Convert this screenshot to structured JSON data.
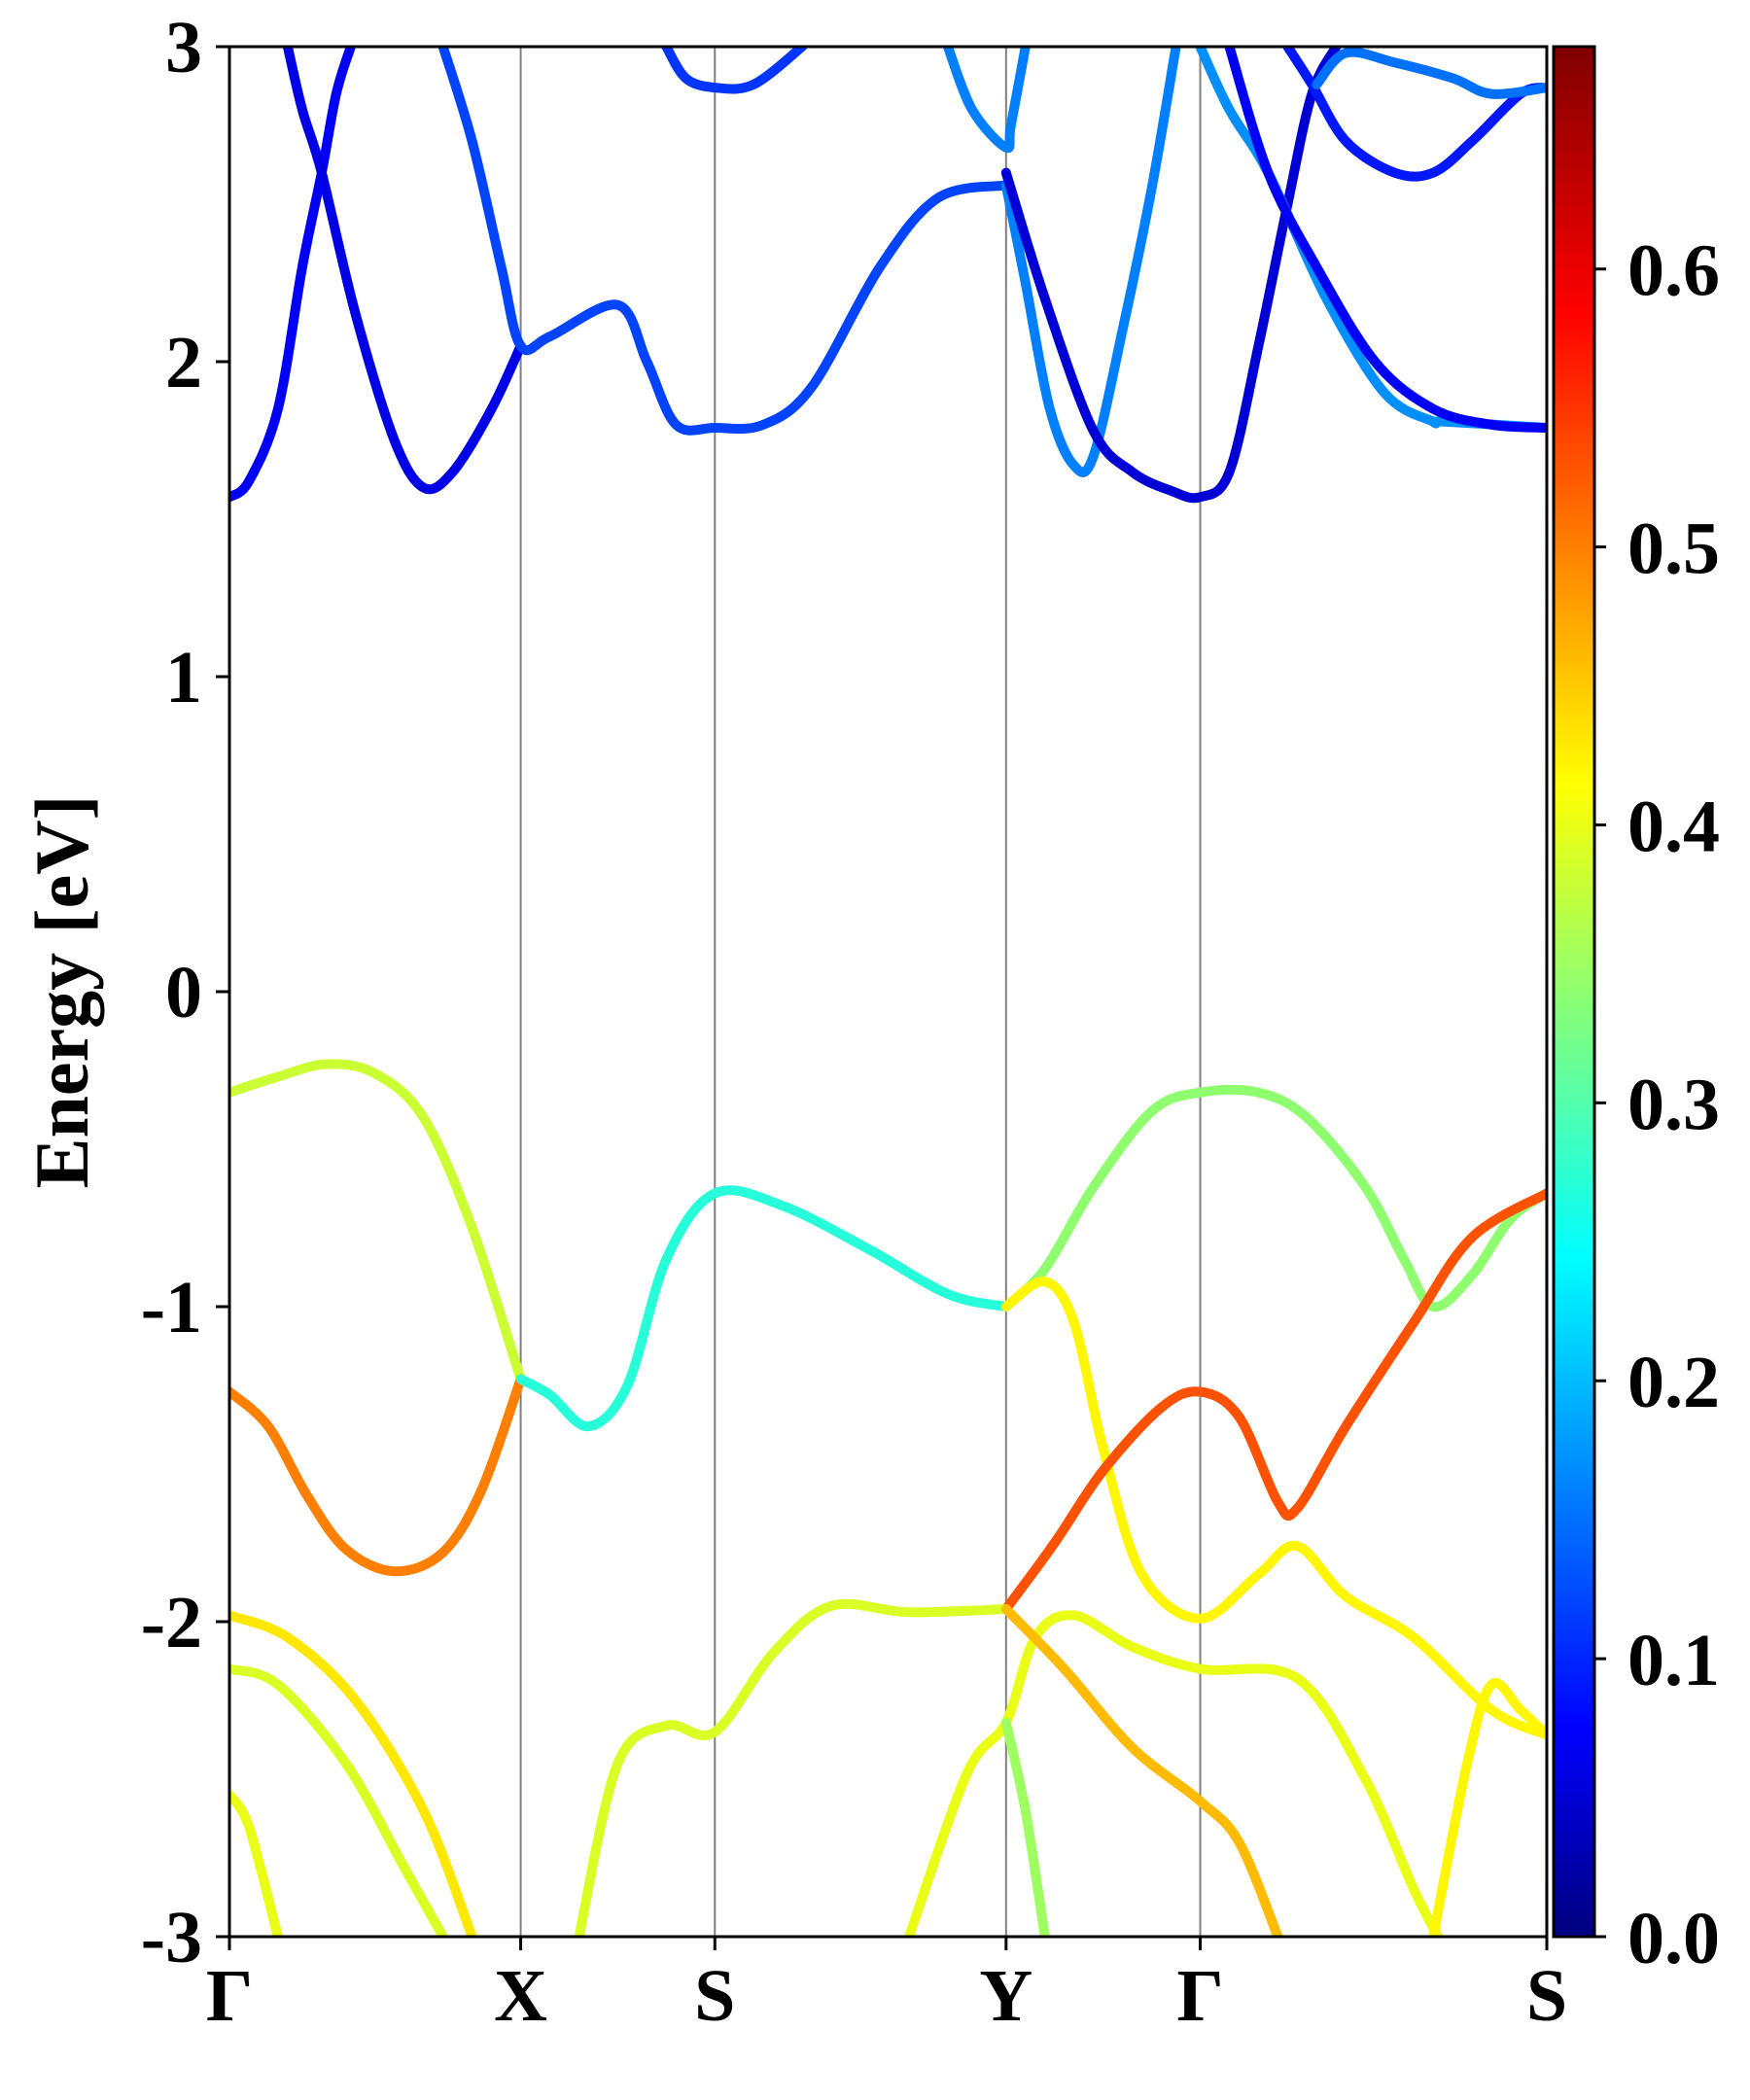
{
  "chart_data": {
    "type": "line",
    "title": "",
    "ylabel": "Energy [eV]",
    "xlabel": "",
    "ylim": [
      -3,
      3
    ],
    "yticks": [
      "-3",
      "-2",
      "-1",
      "0",
      "1",
      "2",
      "3"
    ],
    "kpath": {
      "labels": [
        "Γ",
        "X",
        "S",
        "Y",
        "Γ",
        "S"
      ],
      "positions": [
        0,
        0.3,
        0.5,
        0.8,
        1.0,
        1.357
      ]
    },
    "colorbar": {
      "colormap": "jet",
      "range": [
        0.0,
        0.68
      ],
      "ticks": [
        "0.0",
        "0.1",
        "0.2",
        "0.3",
        "0.4",
        "0.5",
        "0.6"
      ]
    },
    "grid": false,
    "series": [
      {
        "c": 0.07,
        "points": [
          [
            0,
            1.57
          ],
          [
            0.02,
            1.62
          ],
          [
            0.05,
            1.85
          ],
          [
            0.075,
            2.3
          ],
          [
            0.095,
            2.6
          ],
          [
            0.11,
            2.85
          ],
          [
            0.125,
            3.0
          ]
        ]
      },
      {
        "c": 0.06,
        "points": [
          [
            0.06,
            3.0
          ],
          [
            0.075,
            2.8
          ],
          [
            0.095,
            2.6
          ],
          [
            0.13,
            2.15
          ],
          [
            0.17,
            1.75
          ],
          [
            0.2,
            1.6
          ],
          [
            0.23,
            1.65
          ],
          [
            0.27,
            1.85
          ],
          [
            0.3,
            2.05
          ]
        ]
      },
      {
        "c": 0.12,
        "points": [
          [
            0.22,
            3.0
          ],
          [
            0.25,
            2.7
          ],
          [
            0.28,
            2.3
          ],
          [
            0.3,
            2.05
          ],
          [
            0.33,
            2.08
          ],
          [
            0.4,
            2.18
          ],
          [
            0.43,
            2.0
          ],
          [
            0.46,
            1.8
          ],
          [
            0.5,
            1.79
          ],
          [
            0.55,
            1.8
          ],
          [
            0.6,
            1.92
          ],
          [
            0.67,
            2.3
          ],
          [
            0.73,
            2.52
          ],
          [
            0.8,
            2.56
          ]
        ]
      },
      {
        "c": 0.11,
        "points": [
          [
            0.45,
            3.0
          ],
          [
            0.47,
            2.9
          ],
          [
            0.5,
            2.87
          ],
          [
            0.54,
            2.88
          ],
          [
            0.59,
            3.0
          ]
        ]
      },
      {
        "c": 0.16,
        "points": [
          [
            0.74,
            3.0
          ],
          [
            0.765,
            2.8
          ],
          [
            0.8,
            2.68
          ],
          [
            0.805,
            2.75
          ],
          [
            0.82,
            3.0
          ]
        ]
      },
      {
        "c": 0.16,
        "points": [
          [
            0.8,
            2.56
          ],
          [
            0.82,
            2.25
          ],
          [
            0.845,
            1.85
          ],
          [
            0.87,
            1.67
          ],
          [
            0.89,
            1.7
          ],
          [
            0.92,
            2.1
          ],
          [
            0.95,
            2.55
          ],
          [
            0.975,
            3.0
          ]
        ]
      },
      {
        "c": 0.05,
        "points": [
          [
            0.8,
            2.6
          ],
          [
            0.84,
            2.2
          ],
          [
            0.89,
            1.78
          ],
          [
            0.93,
            1.65
          ],
          [
            0.97,
            1.59
          ],
          [
            1.0,
            1.57
          ],
          [
            1.03,
            1.65
          ],
          [
            1.06,
            2.05
          ],
          [
            1.09,
            2.5
          ],
          [
            1.115,
            2.85
          ],
          [
            1.14,
            3.0
          ]
        ]
      },
      {
        "c": 0.17,
        "points": [
          [
            1.0,
            3.0
          ],
          [
            1.03,
            2.8
          ],
          [
            1.07,
            2.6
          ],
          [
            1.13,
            2.2
          ],
          [
            1.19,
            1.9
          ],
          [
            1.24,
            1.81
          ],
          [
            1.25,
            1.81
          ],
          [
            1.357,
            1.79
          ]
        ]
      },
      {
        "c": 0.07,
        "points": [
          [
            1.03,
            3.0
          ],
          [
            1.07,
            2.6
          ],
          [
            1.12,
            2.3
          ],
          [
            1.18,
            2.0
          ],
          [
            1.24,
            1.85
          ],
          [
            1.3,
            1.8
          ],
          [
            1.357,
            1.79
          ]
        ]
      },
      {
        "c": 0.09,
        "points": [
          [
            1.09,
            3.0
          ],
          [
            1.115,
            2.88
          ],
          [
            1.15,
            2.7
          ],
          [
            1.2,
            2.6
          ],
          [
            1.24,
            2.6
          ],
          [
            1.28,
            2.7
          ],
          [
            1.33,
            2.85
          ],
          [
            1.357,
            2.87
          ]
        ]
      },
      {
        "c": 0.15,
        "points": [
          [
            1.12,
            2.88
          ],
          [
            1.15,
            2.98
          ],
          [
            1.2,
            2.95
          ],
          [
            1.26,
            2.9
          ],
          [
            1.3,
            2.85
          ],
          [
            1.357,
            2.87
          ]
        ]
      },
      {
        "c": 0.38,
        "points": [
          [
            0,
            -0.32
          ],
          [
            0.05,
            -0.27
          ],
          [
            0.1,
            -0.23
          ],
          [
            0.15,
            -0.26
          ],
          [
            0.2,
            -0.4
          ],
          [
            0.25,
            -0.75
          ],
          [
            0.3,
            -1.23
          ]
        ]
      },
      {
        "c": 0.5,
        "points": [
          [
            0,
            -1.27
          ],
          [
            0.04,
            -1.38
          ],
          [
            0.08,
            -1.6
          ],
          [
            0.12,
            -1.77
          ],
          [
            0.17,
            -1.84
          ],
          [
            0.22,
            -1.78
          ],
          [
            0.26,
            -1.58
          ],
          [
            0.3,
            -1.23
          ]
        ]
      },
      {
        "c": 0.27,
        "points": [
          [
            0.3,
            -1.23
          ],
          [
            0.33,
            -1.28
          ],
          [
            0.37,
            -1.38
          ],
          [
            0.41,
            -1.25
          ],
          [
            0.45,
            -0.85
          ],
          [
            0.5,
            -0.64
          ],
          [
            0.57,
            -0.68
          ],
          [
            0.66,
            -0.82
          ],
          [
            0.74,
            -0.96
          ],
          [
            0.8,
            -1.0
          ]
        ]
      },
      {
        "c": 0.34,
        "points": [
          [
            0.8,
            -1.0
          ],
          [
            0.84,
            -0.88
          ],
          [
            0.89,
            -0.62
          ],
          [
            0.95,
            -0.38
          ],
          [
            1.0,
            -0.32
          ],
          [
            1.06,
            -0.32
          ],
          [
            1.11,
            -0.4
          ],
          [
            1.17,
            -0.62
          ],
          [
            1.21,
            -0.85
          ],
          [
            1.24,
            -1.0
          ],
          [
            1.28,
            -0.9
          ],
          [
            1.32,
            -0.72
          ],
          [
            1.357,
            -0.64
          ]
        ]
      },
      {
        "c": 0.42,
        "points": [
          [
            0.8,
            -1.0
          ],
          [
            0.84,
            -0.92
          ],
          [
            0.87,
            -1.05
          ],
          [
            0.9,
            -1.45
          ],
          [
            0.94,
            -1.85
          ],
          [
            1.0,
            -1.99
          ],
          [
            1.06,
            -1.85
          ],
          [
            1.1,
            -1.76
          ],
          [
            1.15,
            -1.92
          ],
          [
            1.22,
            -2.05
          ],
          [
            1.3,
            -2.28
          ],
          [
            1.357,
            -2.36
          ]
        ]
      },
      {
        "c": 0.53,
        "points": [
          [
            0.8,
            -1.96
          ],
          [
            0.85,
            -1.75
          ],
          [
            0.9,
            -1.52
          ],
          [
            0.96,
            -1.32
          ],
          [
            1.0,
            -1.27
          ],
          [
            1.04,
            -1.35
          ],
          [
            1.08,
            -1.62
          ],
          [
            1.1,
            -1.64
          ],
          [
            1.15,
            -1.38
          ],
          [
            1.22,
            -1.05
          ],
          [
            1.28,
            -0.78
          ],
          [
            1.357,
            -0.64
          ]
        ]
      },
      {
        "c": 0.43,
        "points": [
          [
            0,
            -1.98
          ],
          [
            0.06,
            -2.05
          ],
          [
            0.13,
            -2.25
          ],
          [
            0.2,
            -2.6
          ],
          [
            0.25,
            -3.0
          ]
        ]
      },
      {
        "c": 0.39,
        "points": [
          [
            0,
            -2.15
          ],
          [
            0.05,
            -2.2
          ],
          [
            0.12,
            -2.45
          ],
          [
            0.18,
            -2.78
          ],
          [
            0.22,
            -3.0
          ]
        ]
      },
      {
        "c": 0.4,
        "points": [
          [
            0,
            -2.55
          ],
          [
            0.02,
            -2.65
          ],
          [
            0.05,
            -3.0
          ]
        ]
      },
      {
        "c": 0.39,
        "points": [
          [
            0.36,
            -3.0
          ],
          [
            0.4,
            -2.45
          ],
          [
            0.45,
            -2.33
          ],
          [
            0.5,
            -2.35
          ],
          [
            0.56,
            -2.1
          ],
          [
            0.62,
            -1.95
          ],
          [
            0.7,
            -1.97
          ],
          [
            0.8,
            -1.96
          ]
        ]
      },
      {
        "c": 0.4,
        "points": [
          [
            0.7,
            -3.0
          ],
          [
            0.76,
            -2.48
          ],
          [
            0.8,
            -2.32
          ],
          [
            0.83,
            -2.05
          ],
          [
            0.87,
            -1.98
          ],
          [
            0.93,
            -2.08
          ],
          [
            1.0,
            -2.15
          ],
          [
            1.1,
            -2.18
          ],
          [
            1.17,
            -2.5
          ],
          [
            1.22,
            -2.85
          ],
          [
            1.245,
            -3.0
          ]
        ]
      },
      {
        "c": 0.46,
        "points": [
          [
            0.8,
            -1.96
          ],
          [
            0.86,
            -2.15
          ],
          [
            0.93,
            -2.4
          ],
          [
            1.0,
            -2.57
          ],
          [
            1.04,
            -2.7
          ],
          [
            1.08,
            -3.0
          ]
        ]
      },
      {
        "c": 0.35,
        "points": [
          [
            0.8,
            -2.32
          ],
          [
            0.82,
            -2.6
          ],
          [
            0.84,
            -3.0
          ]
        ]
      },
      {
        "c": 0.42,
        "points": [
          [
            1.24,
            -3.0
          ],
          [
            1.275,
            -2.45
          ],
          [
            1.3,
            -2.2
          ],
          [
            1.33,
            -2.28
          ],
          [
            1.357,
            -2.36
          ]
        ]
      }
    ]
  }
}
